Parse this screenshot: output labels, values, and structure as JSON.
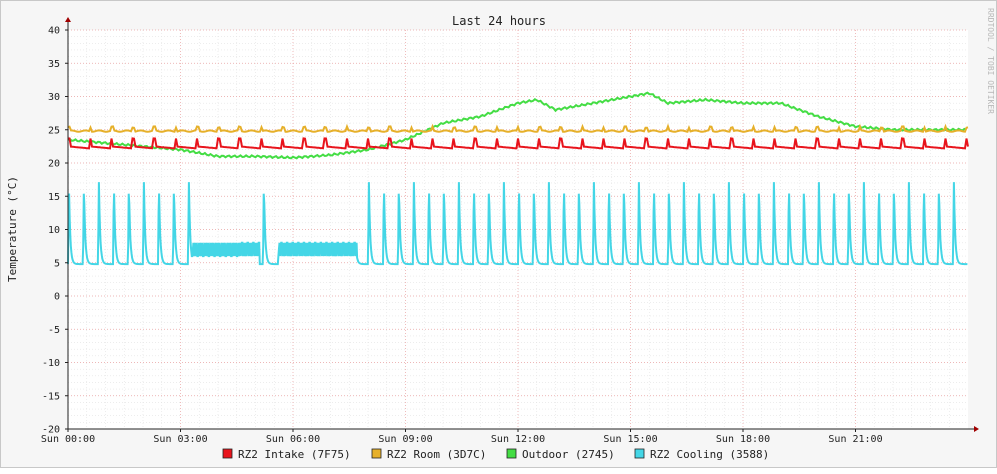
{
  "chart_data": {
    "type": "line",
    "title": "Last 24 hours",
    "ylabel": "Temperature (°C)",
    "xlabel": "",
    "side_label": "RRDTOOL / TOBI OETIKER",
    "ylim": [
      -20,
      40
    ],
    "yticks": [
      40,
      35,
      30,
      25,
      20,
      15,
      10,
      5,
      0,
      -5,
      -10,
      -15,
      -20
    ],
    "xlim": [
      0,
      24
    ],
    "xticks": [
      {
        "label": "Sun 00:00",
        "hour": 0
      },
      {
        "label": "Sun 03:00",
        "hour": 3
      },
      {
        "label": "Sun 06:00",
        "hour": 6
      },
      {
        "label": "Sun 09:00",
        "hour": 9
      },
      {
        "label": "Sun 12:00",
        "hour": 12
      },
      {
        "label": "Sun 15:00",
        "hour": 15
      },
      {
        "label": "Sun 18:00",
        "hour": 18
      },
      {
        "label": "Sun 21:00",
        "hour": 21
      }
    ],
    "grid": true,
    "legend_position": "bottom",
    "series": [
      {
        "name": "RZ2 Intake (7F75)",
        "color": "#e8141c",
        "base": 22.5,
        "cycle_amp": 1.2,
        "cycle_hours": 0.57
      },
      {
        "name": "RZ2 Room (3D7C)",
        "color": "#e6b02a",
        "base": 24.8,
        "cycle_amp": 0.6,
        "cycle_hours": 0.57
      },
      {
        "name": "Outdoor (2745)",
        "color": "#44dd44",
        "x": [
          0,
          1,
          2,
          3,
          4,
          5,
          6,
          7,
          8,
          9,
          10,
          11,
          12,
          12.5,
          13,
          14,
          15,
          15.5,
          16,
          17,
          18,
          19,
          20,
          21,
          22,
          23,
          24
        ],
        "y": [
          23.5,
          23,
          22.5,
          22,
          21,
          21,
          20.8,
          21.2,
          22,
          23.5,
          26,
          27,
          29,
          29.5,
          28,
          29,
          30,
          30.5,
          29,
          29.5,
          29,
          29,
          27,
          25.5,
          25,
          25,
          25
        ]
      },
      {
        "name": "RZ2 Cooling (3588)",
        "color": "#44d6e6",
        "low": 4.8,
        "high": 17.5,
        "cycle_hours": 0.4,
        "flat_ranges": [
          [
            3.3,
            5.1
          ],
          [
            5.6,
            7.7
          ]
        ],
        "flat_level": 7
      }
    ]
  }
}
